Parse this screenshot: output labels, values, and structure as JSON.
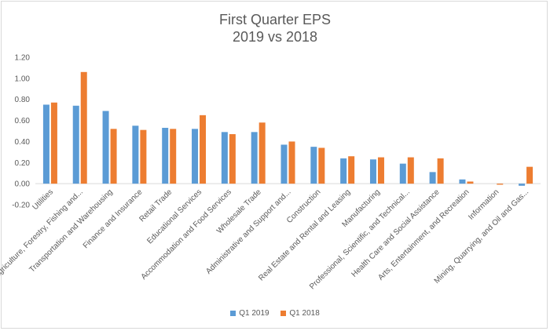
{
  "chart_data": {
    "type": "bar",
    "title": "First Quarter EPS",
    "subtitle": "2019 vs 2018",
    "categories": [
      "Utilities",
      "Agriculture, Forestry, Fishing and...",
      "Transportation and Warehousing",
      "Finance and Insurance",
      "Retail Trade",
      "Educational Services",
      "Accommodation and Food Services",
      "Wholesale Trade",
      "Administrative and Support and...",
      "Construction",
      "Real Estate and Rental and Leasing",
      "Manufacturing",
      "Professional, Scientific, and Technical...",
      "Health Care and Social Assistance",
      "Arts, Entertainment, and Recreation",
      "Information",
      "Mining, Quarrying, and Oil and Gas..."
    ],
    "series": [
      {
        "name": "Q1 2019",
        "color": "#5b9bd5",
        "values": [
          0.75,
          0.74,
          0.69,
          0.55,
          0.53,
          0.52,
          0.49,
          0.49,
          0.37,
          0.35,
          0.24,
          0.23,
          0.19,
          0.11,
          0.04,
          0.0,
          -0.02
        ]
      },
      {
        "name": "Q1 2018",
        "color": "#ed7d31",
        "values": [
          0.77,
          1.06,
          0.52,
          0.51,
          0.52,
          0.65,
          0.47,
          0.58,
          0.4,
          0.34,
          0.26,
          0.25,
          0.25,
          0.24,
          0.02,
          -0.01,
          0.16
        ]
      }
    ],
    "y_ticks": [
      "1.20",
      "1.00",
      "0.80",
      "0.60",
      "0.40",
      "0.20",
      "0.00",
      "-0.20"
    ],
    "ylim": [
      -0.2,
      1.2
    ],
    "grid": false,
    "legend_position": "bottom"
  }
}
